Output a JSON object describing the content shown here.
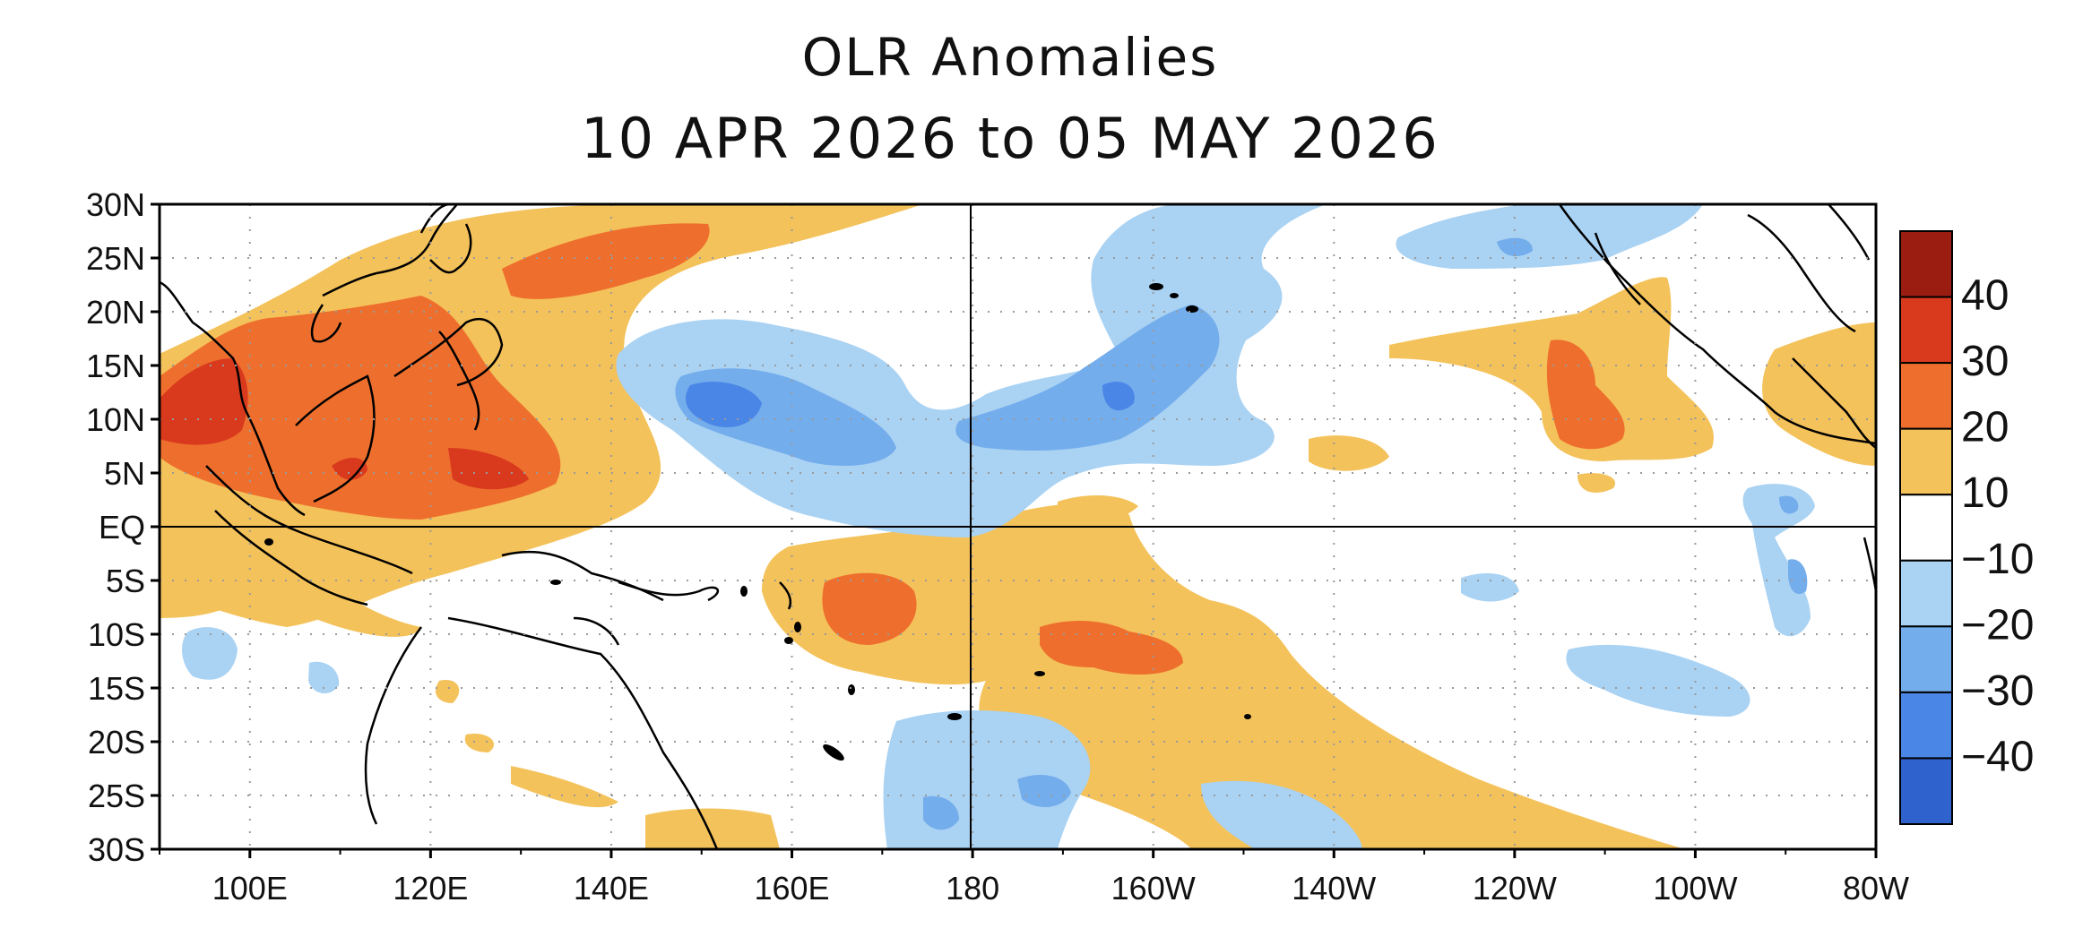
{
  "title": "OLR Anomalies",
  "subtitle": "10 APR 2026 to 05 MAY 2026",
  "lat_labels": [
    "30N",
    "25N",
    "20N",
    "15N",
    "10N",
    "5N",
    "EQ",
    "5S",
    "10S",
    "15S",
    "20S",
    "25S",
    "30S"
  ],
  "lon_labels": [
    "100E",
    "120E",
    "140E",
    "160E",
    "180",
    "160W",
    "140W",
    "120W",
    "100W",
    "80W"
  ],
  "colorbar": {
    "labels": [
      "40",
      "30",
      "20",
      "10",
      "−10",
      "−20",
      "−30",
      "−40"
    ],
    "colors": [
      "#9b1c10",
      "#d93a1e",
      "#ee6f2d",
      "#f4c25a",
      "#ffffff",
      "#a9d2f3",
      "#74adec",
      "#4a86e6",
      "#2f62cc"
    ]
  },
  "colors": {
    "positive_10_20": "#f4c25a",
    "positive_20_30": "#ee6f2d",
    "positive_30_40": "#d93a1e",
    "positive_40": "#9b1c10",
    "negative_10_20": "#a9d2f3",
    "negative_20_30": "#74adec",
    "negative_30_40": "#4a86e6",
    "coastline": "#000000",
    "grid": "#9a9a9a"
  }
}
